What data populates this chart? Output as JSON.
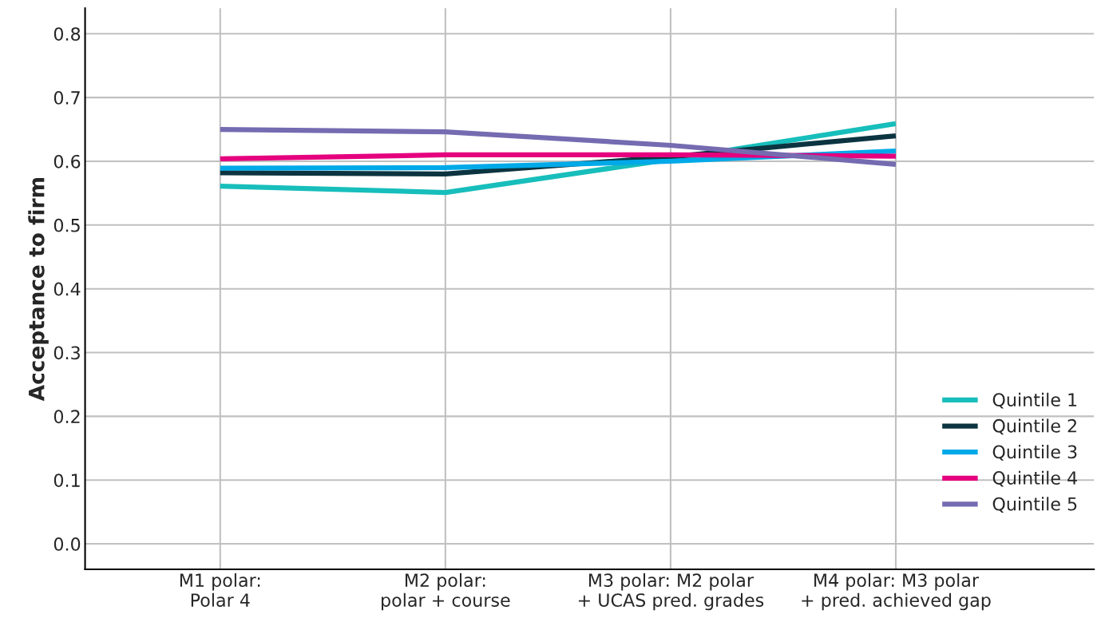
{
  "chart_data": {
    "type": "line",
    "ylabel": "Acceptance to firm",
    "categories": [
      "M1 polar:\nPolar 4",
      "M2 polar:\npolar + course",
      "M3 polar: M2 polar\n+ UCAS pred. grades",
      "M4 polar: M3 polar\n+ pred. achieved gap"
    ],
    "series": [
      {
        "name": "Quintile 1",
        "color": "#17bebb",
        "values": [
          0.561,
          0.551,
          0.603,
          0.659
        ]
      },
      {
        "name": "Quintile 2",
        "color": "#0b3440",
        "values": [
          0.582,
          0.58,
          0.607,
          0.64
        ]
      },
      {
        "name": "Quintile 3",
        "color": "#00a9e8",
        "values": [
          0.589,
          0.59,
          0.6,
          0.616
        ]
      },
      {
        "name": "Quintile 4",
        "color": "#e5007e",
        "values": [
          0.604,
          0.61,
          0.61,
          0.608
        ]
      },
      {
        "name": "Quintile 5",
        "color": "#756bb1",
        "values": [
          0.65,
          0.646,
          0.625,
          0.595
        ]
      }
    ],
    "ylim": [
      -0.04,
      0.84
    ],
    "yticks": [
      {
        "value": 0,
        "label": "0.0"
      },
      0.1,
      0.2,
      0.3,
      0.4,
      0.5,
      0.6,
      0.7,
      0.8
    ],
    "grid": true,
    "legend": "bottom right",
    "marker": "none",
    "line_style": "solid"
  }
}
